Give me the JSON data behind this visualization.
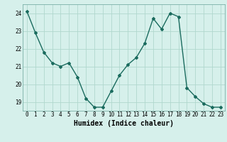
{
  "x": [
    0,
    1,
    2,
    3,
    4,
    5,
    6,
    7,
    8,
    9,
    10,
    11,
    12,
    13,
    14,
    15,
    16,
    17,
    18,
    19,
    20,
    21,
    22,
    23
  ],
  "y": [
    24.1,
    22.9,
    21.8,
    21.2,
    21.0,
    21.2,
    20.4,
    19.2,
    18.7,
    18.7,
    19.6,
    20.5,
    21.1,
    21.5,
    22.3,
    23.7,
    23.1,
    24.0,
    23.8,
    19.8,
    19.3,
    18.9,
    18.7,
    18.7
  ],
  "line_color": "#1a6b5e",
  "marker": "D",
  "marker_size": 2,
  "bg_color": "#d6f0eb",
  "grid_color": "#b0d8ce",
  "xlabel": "Humidex (Indice chaleur)",
  "ylim": [
    18.5,
    24.5
  ],
  "xlim": [
    -0.5,
    23.5
  ],
  "yticks": [
    19,
    20,
    21,
    22,
    23,
    24
  ],
  "xticks": [
    0,
    1,
    2,
    3,
    4,
    5,
    6,
    7,
    8,
    9,
    10,
    11,
    12,
    13,
    14,
    15,
    16,
    17,
    18,
    19,
    20,
    21,
    22,
    23
  ],
  "tick_fontsize": 5.5,
  "xlabel_fontsize": 7.0,
  "line_width": 1.0
}
